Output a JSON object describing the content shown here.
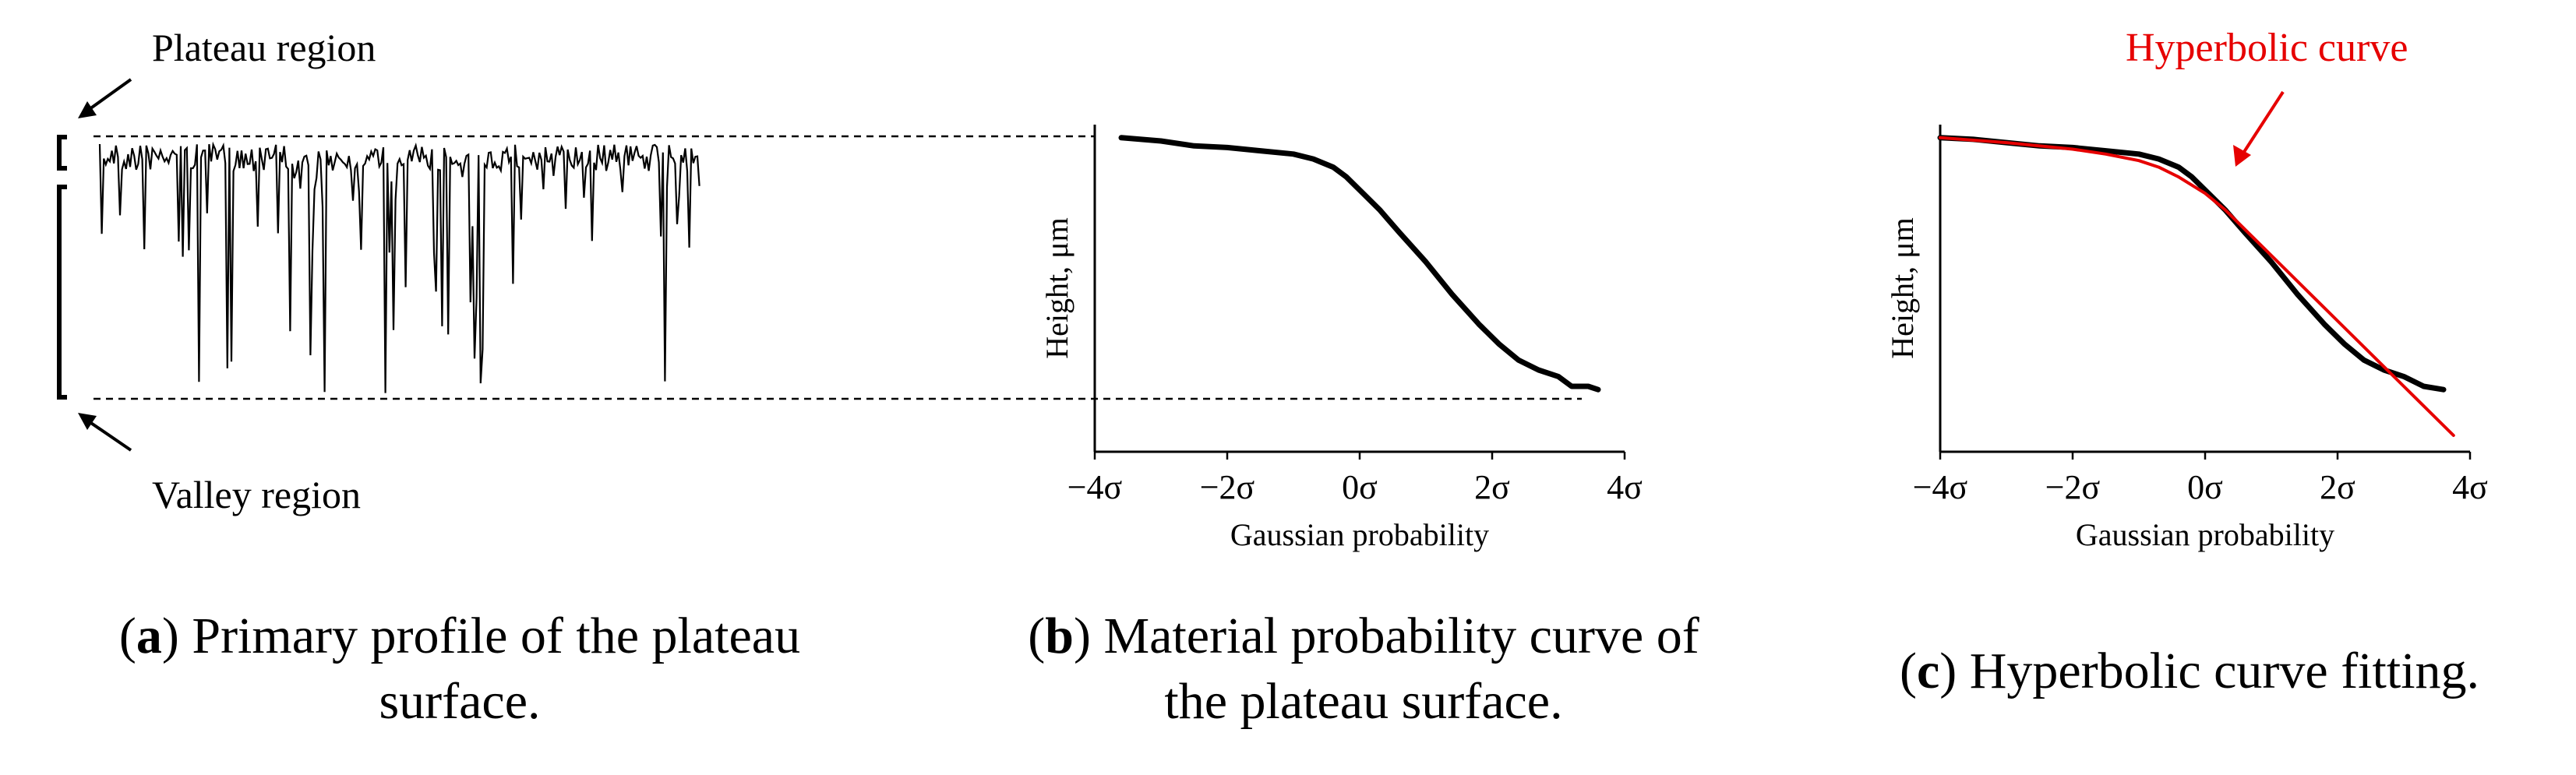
{
  "colors": {
    "line": "#000000",
    "fit": "#e60000",
    "guide": "#000000",
    "background": "#ffffff"
  },
  "panel_a": {
    "plateau_label": "Plateau region",
    "valley_label": "Valley region"
  },
  "captions": {
    "a": {
      "letter": "a",
      "line1": ") Primary profile of the plateau",
      "line2": "surface."
    },
    "b": {
      "letter": "b",
      "line1": ") Material probability curve of",
      "line2": "the plateau surface."
    },
    "c": {
      "letter": "c",
      "line1": ") Hyperbolic curve fitting."
    }
  },
  "chart_data": [
    {
      "type": "line",
      "panel": "a",
      "title": "",
      "xlabel": "",
      "ylabel": "",
      "annotations": [
        "Plateau region",
        "Valley region"
      ],
      "description_series": "primary surface profile: dense plateau at top, deep narrow valleys",
      "series": [
        {
          "values_range": [
            0,
            1
          ]
        }
      ]
    },
    {
      "type": "line",
      "panel": "b",
      "xlabel": "Gaussian probability",
      "ylabel": "Height, μm",
      "x_ticks": [
        "−4σ",
        "−2σ",
        "0σ",
        "2σ",
        "4σ"
      ],
      "x_tick_values": [
        -4,
        -2,
        0,
        2,
        4
      ],
      "xlim": [
        -4,
        4
      ],
      "ylim": [
        0,
        1
      ],
      "series": [
        {
          "x": [
            -3.6,
            -3.0,
            -2.5,
            -2.0,
            -1.5,
            -1.0,
            -0.7,
            -0.4,
            -0.2,
            0.0,
            0.3,
            0.6,
            1.0,
            1.4,
            1.8,
            2.1,
            2.4,
            2.7,
            3.0,
            3.2,
            3.45,
            3.6
          ],
          "y": [
            0.96,
            0.95,
            0.935,
            0.93,
            0.92,
            0.91,
            0.895,
            0.87,
            0.84,
            0.8,
            0.74,
            0.67,
            0.58,
            0.48,
            0.39,
            0.33,
            0.28,
            0.25,
            0.23,
            0.2,
            0.2,
            0.19
          ]
        }
      ]
    },
    {
      "type": "line",
      "panel": "c",
      "xlabel": "Gaussian probability",
      "ylabel": "Height, μm",
      "x_ticks": [
        "−4σ",
        "−2σ",
        "0σ",
        "2σ",
        "4σ"
      ],
      "x_tick_values": [
        -4,
        -2,
        0,
        2,
        4
      ],
      "xlim": [
        -4,
        4
      ],
      "ylim": [
        0,
        1
      ],
      "annotations": [
        "Hyperbolic curve"
      ],
      "series": [
        {
          "x": [
            -4.0,
            -3.5,
            -3.0,
            -2.5,
            -2.0,
            -1.5,
            -1.0,
            -0.7,
            -0.4,
            -0.2,
            0.0,
            0.3,
            0.6,
            1.0,
            1.4,
            1.8,
            2.1,
            2.4,
            2.7,
            3.0,
            3.3,
            3.6
          ],
          "y": [
            0.96,
            0.955,
            0.945,
            0.935,
            0.93,
            0.92,
            0.91,
            0.895,
            0.87,
            0.84,
            0.8,
            0.74,
            0.67,
            0.58,
            0.48,
            0.39,
            0.33,
            0.28,
            0.25,
            0.23,
            0.2,
            0.19
          ]
        },
        {
          "name": "Hyperbolic curve",
          "x": [
            -4.0,
            -3.0,
            -2.0,
            -1.5,
            -1.0,
            -0.7,
            -0.4,
            -0.2,
            0.0,
            0.3,
            0.6,
            1.0,
            1.5,
            2.0,
            2.5,
            3.0,
            3.5,
            3.75
          ],
          "y": [
            0.96,
            0.945,
            0.925,
            0.91,
            0.89,
            0.87,
            0.84,
            0.815,
            0.79,
            0.74,
            0.68,
            0.6,
            0.5,
            0.4,
            0.3,
            0.2,
            0.1,
            0.05
          ]
        }
      ]
    }
  ]
}
